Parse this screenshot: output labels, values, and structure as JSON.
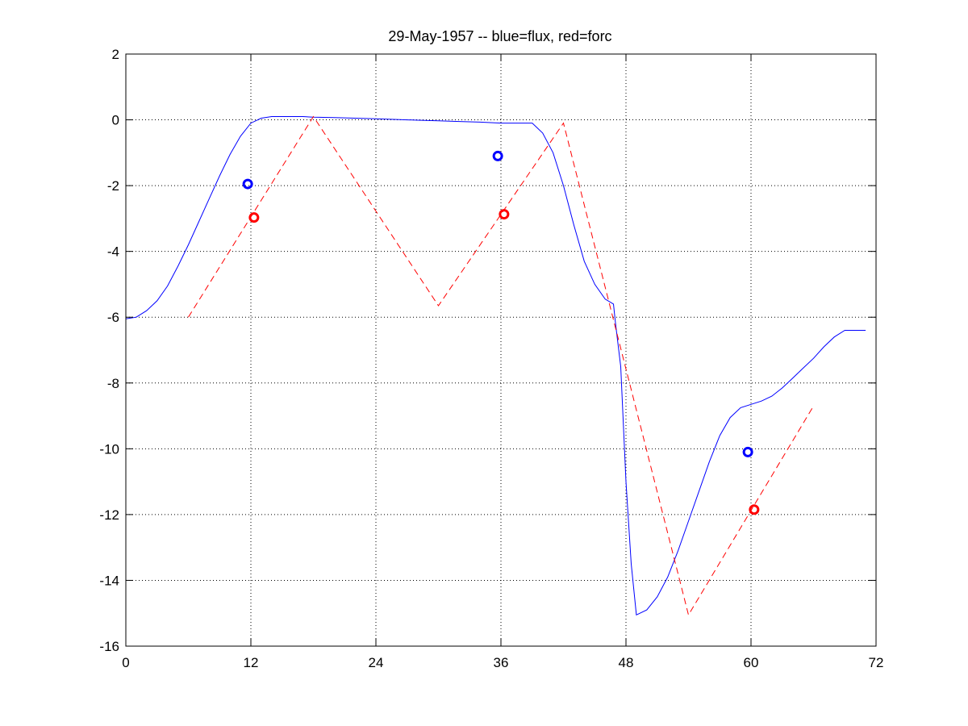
{
  "chart_data": {
    "type": "line",
    "title": "29-May-1957 -- blue=flux, red=forc",
    "xlabel": "",
    "ylabel": "",
    "xlim": [
      0,
      72
    ],
    "ylim": [
      -16,
      2
    ],
    "xticks": [
      0,
      12,
      24,
      36,
      48,
      60,
      72
    ],
    "yticks": [
      2,
      0,
      -2,
      -4,
      -6,
      -8,
      -10,
      -12,
      -14,
      -16
    ],
    "grid": true,
    "colors": {
      "flux": "#0000ff",
      "forc": "#ff0000"
    },
    "series": [
      {
        "key": "flux",
        "style": "solid",
        "x": [
          0,
          1,
          2,
          3,
          4,
          5,
          6,
          7,
          8,
          9,
          10,
          11,
          12,
          13,
          14,
          15,
          16,
          17,
          18,
          20,
          22,
          24,
          26,
          28,
          30,
          32,
          34,
          36,
          37,
          38,
          39,
          40,
          41,
          42,
          43,
          44,
          45,
          46,
          46.8,
          47,
          47.5,
          48,
          48.5,
          49,
          50,
          51,
          52,
          53,
          54,
          55,
          56,
          57,
          58,
          59,
          60,
          61,
          62,
          63,
          64,
          65,
          66,
          67,
          68,
          69,
          70,
          71
        ],
        "y": [
          -6.05,
          -6.0,
          -5.8,
          -5.5,
          -5.05,
          -4.45,
          -3.8,
          -3.1,
          -2.4,
          -1.7,
          -1.05,
          -0.5,
          -0.1,
          0.05,
          0.1,
          0.1,
          0.1,
          0.1,
          0.08,
          0.07,
          0.05,
          0.03,
          0.01,
          -0.01,
          -0.03,
          -0.05,
          -0.07,
          -0.1,
          -0.1,
          -0.1,
          -0.1,
          -0.4,
          -1.0,
          -2.0,
          -3.2,
          -4.3,
          -5.0,
          -5.45,
          -5.6,
          -6.2,
          -7.5,
          -11.0,
          -13.5,
          -15.05,
          -14.9,
          -14.5,
          -13.9,
          -13.1,
          -12.2,
          -11.3,
          -10.4,
          -9.6,
          -9.05,
          -8.75,
          -8.65,
          -8.55,
          -8.4,
          -8.15,
          -7.85,
          -7.55,
          -7.25,
          -6.9,
          -6.6,
          -6.4,
          -6.4,
          -6.4
        ]
      },
      {
        "key": "forc",
        "style": "dashed",
        "x": [
          6,
          18,
          30,
          42,
          54,
          66
        ],
        "y": [
          -6.0,
          0.1,
          -5.65,
          -0.1,
          -15.05,
          -8.7
        ]
      }
    ],
    "markers": [
      {
        "key": "flux",
        "x": 11.7,
        "y": -1.95
      },
      {
        "key": "forc",
        "x": 12.3,
        "y": -2.97
      },
      {
        "key": "flux",
        "x": 35.7,
        "y": -1.1
      },
      {
        "key": "forc",
        "x": 36.3,
        "y": -2.87
      },
      {
        "key": "flux",
        "x": 59.7,
        "y": -10.1
      },
      {
        "key": "forc",
        "x": 60.3,
        "y": -11.85
      }
    ]
  }
}
